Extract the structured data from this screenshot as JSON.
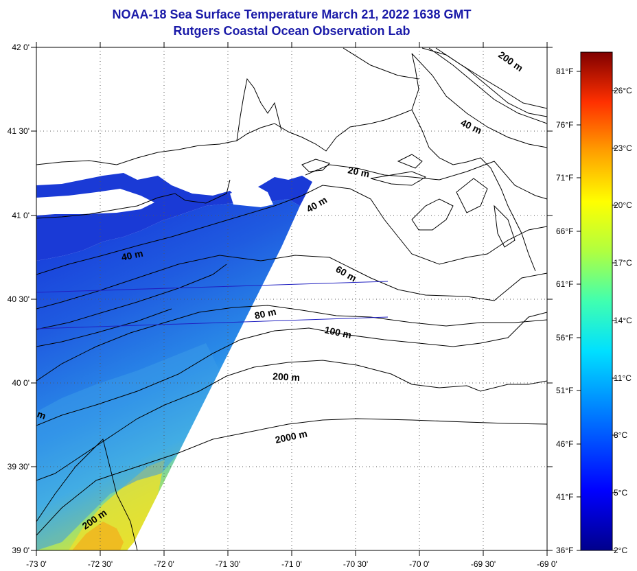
{
  "title": {
    "line1": "NOAA-18 Sea Surface Temperature March 21, 2022 1638 GMT",
    "line2": "Rutgers Coastal Ocean Observation Lab"
  },
  "axes": {
    "x_ticks": [
      "-73 0'",
      "-72 30'",
      "-72 0'",
      "-71 30'",
      "-71 0'",
      "-70 30'",
      "-70 0'",
      "-69 30'",
      "-69 0'"
    ],
    "y_ticks": [
      "42 0'",
      "41 30'",
      "41 0'",
      "40 30'",
      "40 0'",
      "39 30'",
      "39 0'"
    ]
  },
  "colorbar": {
    "fahrenheit": [
      "81°F",
      "76°F",
      "71°F",
      "66°F",
      "61°F",
      "56°F",
      "51°F",
      "46°F",
      "41°F",
      "36°F"
    ],
    "celsius": [
      "26°C",
      "23°C",
      "20°C",
      "17°C",
      "14°C",
      "11°C",
      "8°C",
      "5°C",
      "2°C"
    ]
  },
  "contour_labels": {
    "c200_ne": "200 m",
    "c40_ne": "40 m",
    "c20": "20 m",
    "c40_mid": "40 m",
    "c40_w": "40 m",
    "c60": "60 m",
    "c80": "80 m",
    "c100": "100 m",
    "c200_mid": "200 m",
    "c2000": "2000 m",
    "c200_sw": "200 m",
    "m_edge": "m"
  },
  "colors": {
    "title": "#1a1aa8",
    "sst_cold": "#1530d8",
    "sst_mid": "#2a8ee8",
    "sst_warm": "#f0e020"
  }
}
